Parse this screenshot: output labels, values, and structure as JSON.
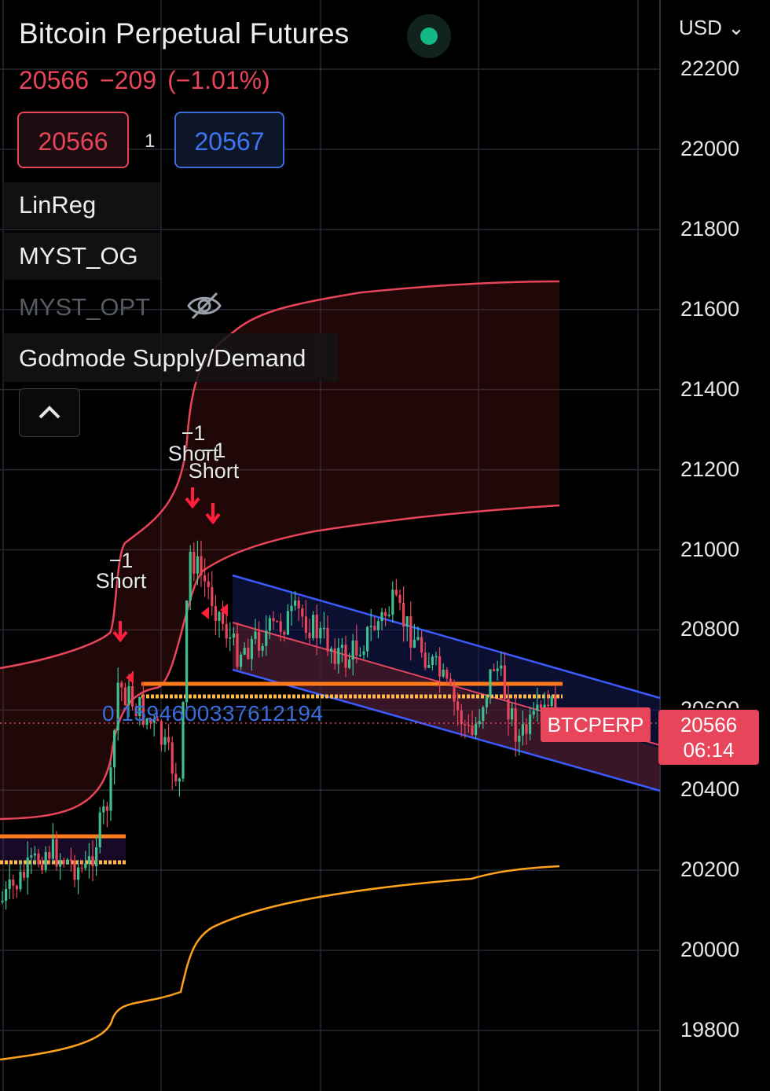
{
  "header": {
    "title": "Bitcoin Perpetual Futures",
    "last_price": "20566",
    "change": "−209",
    "change_pct": "(−1.01%)",
    "bid": "20566",
    "spread": "1",
    "ask": "20567"
  },
  "indicators": [
    {
      "label": "LinReg",
      "hidden": false
    },
    {
      "label": "MYST_OG",
      "hidden": false
    },
    {
      "label": "MYST_OPT",
      "hidden": true
    },
    {
      "label": "Godmode Supply/Demand",
      "hidden": false
    }
  ],
  "axis": {
    "currency": "USD",
    "ticks": [
      "22200",
      "22000",
      "21800",
      "21600",
      "21400",
      "21200",
      "21000",
      "20800",
      "20600",
      "20400",
      "20200",
      "20000",
      "19800"
    ]
  },
  "annotations": {
    "signals": [
      {
        "value": "−1",
        "label": "Short"
      },
      {
        "value": "−1",
        "label": "Short"
      },
      {
        "value": "−1",
        "label": "Short"
      }
    ],
    "fib_value": "0.15946003376121​94",
    "symbol_tag": "BTCPERP",
    "price_tag": "20566",
    "countdown": "06:14"
  },
  "colors": {
    "bearish": "#e8445a",
    "bullish": "#3fbf8f",
    "channel": "#3b5bff",
    "supply": "#ff7a1a",
    "demand_band": "#ffb84a",
    "upper_band": "#e8445a",
    "lower_band": "#ffa21a",
    "grid": "#262a33"
  }
}
